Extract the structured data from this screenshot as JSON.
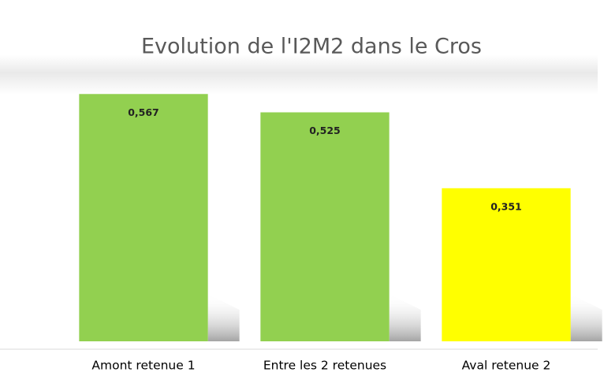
{
  "chart_data": {
    "type": "bar",
    "title": "Evolution de l'I2M2 dans le Cros",
    "categories": [
      "Amont retenue 1",
      "Entre les 2 retenues",
      "Aval retenue 2"
    ],
    "values": [
      0.567,
      0.525,
      0.351
    ],
    "value_labels": [
      "0,567",
      "0,525",
      "0,351"
    ],
    "colors": [
      "#92d050",
      "#92d050",
      "#ffff00"
    ],
    "ylim": [
      0,
      0.6
    ]
  }
}
